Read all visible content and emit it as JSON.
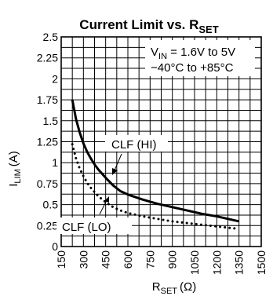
{
  "chart_data": {
    "type": "line",
    "title": "Current Limit vs. R",
    "title_sub": "SET",
    "xlabel": "R",
    "xlabel_sub": "SET",
    "xlabel_unit": "(Ω)",
    "ylabel": "I",
    "ylabel_sub": "LIM",
    "ylabel_unit": "(A)",
    "xlim": [
      150,
      1500
    ],
    "ylim": [
      0,
      2.5
    ],
    "xticks": [
      "150",
      "300",
      "450",
      "600",
      "750",
      "900",
      "1050",
      "1200",
      "1350",
      "1500"
    ],
    "yticks": [
      "0",
      "0.25",
      "0.5",
      "0.75",
      "1",
      "1.25",
      "1.5",
      "1.75",
      "2",
      "2.25",
      "2.5"
    ],
    "minor_x_step": 75,
    "minor_y_step": 0.125,
    "grid": true,
    "conditions": {
      "line1_prefix": "V",
      "line1_sub": "IN",
      "line1_suffix": " = 1.6V to 5V",
      "line2": "−40°C to +85°C"
    },
    "series": [
      {
        "name": "CLF (HI)",
        "style": "solid",
        "x": [
          225,
          250,
          275,
          300,
          325,
          350,
          375,
          400,
          450,
          500,
          550,
          600,
          700,
          800,
          900,
          1000,
          1100,
          1200,
          1300,
          1350
        ],
        "y": [
          1.75,
          1.52,
          1.36,
          1.23,
          1.13,
          1.05,
          0.98,
          0.92,
          0.82,
          0.73,
          0.66,
          0.62,
          0.56,
          0.51,
          0.47,
          0.43,
          0.39,
          0.36,
          0.32,
          0.3
        ]
      },
      {
        "name": "CLF (LO)",
        "style": "dotted",
        "x": [
          225,
          250,
          275,
          300,
          325,
          350,
          400,
          450,
          500,
          550,
          600,
          700,
          800,
          900,
          1000,
          1100,
          1200,
          1300,
          1350
        ],
        "y": [
          1.22,
          1.05,
          0.93,
          0.84,
          0.76,
          0.7,
          0.6,
          0.53,
          0.47,
          0.43,
          0.4,
          0.36,
          0.33,
          0.3,
          0.28,
          0.26,
          0.24,
          0.22,
          0.21
        ]
      }
    ]
  }
}
